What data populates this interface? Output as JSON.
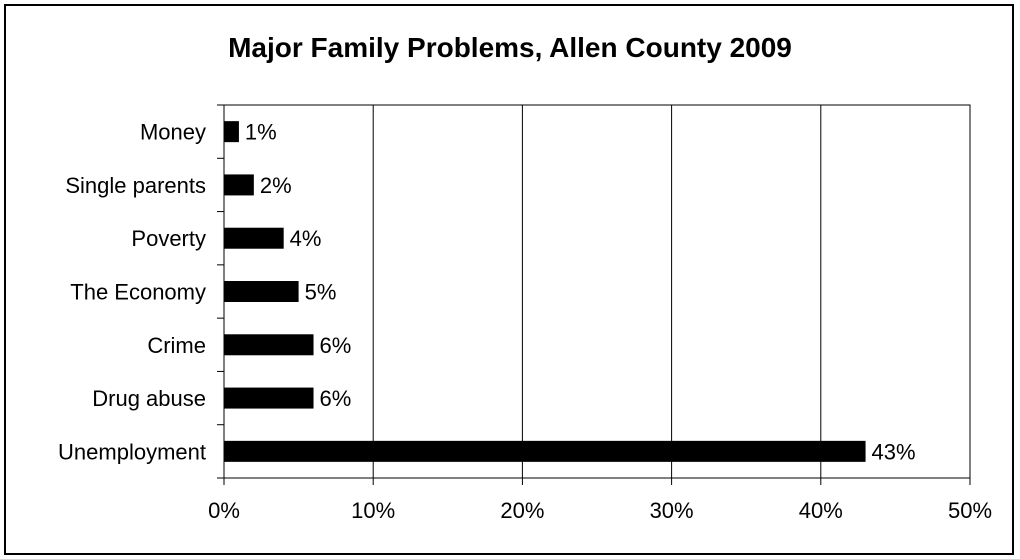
{
  "chart_data": {
    "type": "bar",
    "orientation": "horizontal",
    "title": "Major Family Problems, Allen County 2009",
    "categories": [
      "Money",
      "Single parents",
      "Poverty",
      "The Economy",
      "Crime",
      "Drug abuse",
      "Unemployment"
    ],
    "values": [
      1,
      2,
      4,
      5,
      6,
      6,
      43
    ],
    "data_labels": [
      "1%",
      "2%",
      "4%",
      "5%",
      "6%",
      "6%",
      "43%"
    ],
    "xlim": [
      0,
      50
    ],
    "x_ticks": [
      0,
      10,
      20,
      30,
      40,
      50
    ],
    "x_tick_labels": [
      "0%",
      "10%",
      "20%",
      "30%",
      "40%",
      "50%"
    ],
    "xlabel": "",
    "ylabel": "",
    "grid": "vertical",
    "legend": "none",
    "bar_color": "#000000"
  }
}
